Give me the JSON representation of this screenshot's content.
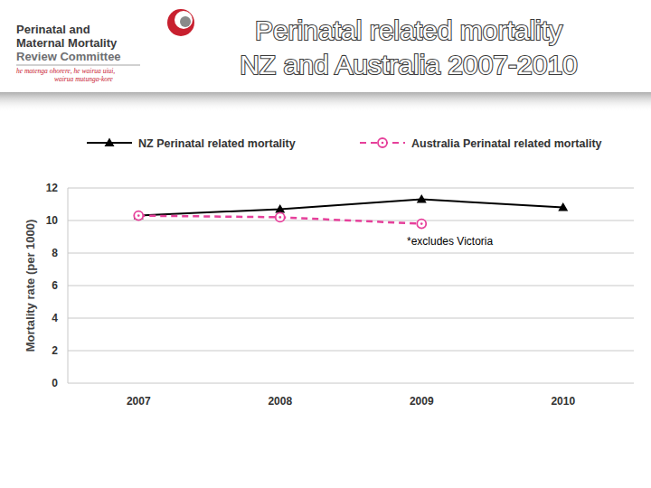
{
  "header": {
    "logo_lines": [
      "Perinatal and",
      "Maternal Mortality",
      "Review Committee"
    ],
    "motto_lines": [
      "he matenga ohorere, he wairua uiui,",
      "wairua mutunga-kore"
    ]
  },
  "chart_data": {
    "type": "line",
    "title": "Perinatal related mortality\nNZ and Australia 2007-2010",
    "y_label": "Mortality rate (per 1000)",
    "annotation": "*excludes Victoria",
    "categories": [
      "2007",
      "2008",
      "2009",
      "2010"
    ],
    "series": [
      {
        "name": "NZ Perinatal related mortality",
        "color": "#000000",
        "marker": "triangle",
        "line_style": "solid",
        "values": [
          10.3,
          10.7,
          11.3,
          10.8
        ]
      },
      {
        "name": "Australia Perinatal related mortality",
        "color": "#e6409b",
        "marker": "circle",
        "line_style": "dashed",
        "values": [
          10.3,
          10.2,
          9.8,
          null
        ]
      }
    ],
    "ylim": [
      0,
      12
    ],
    "yticks": [
      0,
      2,
      4,
      6,
      8,
      10,
      12
    ],
    "grid": true,
    "legend": "top"
  }
}
